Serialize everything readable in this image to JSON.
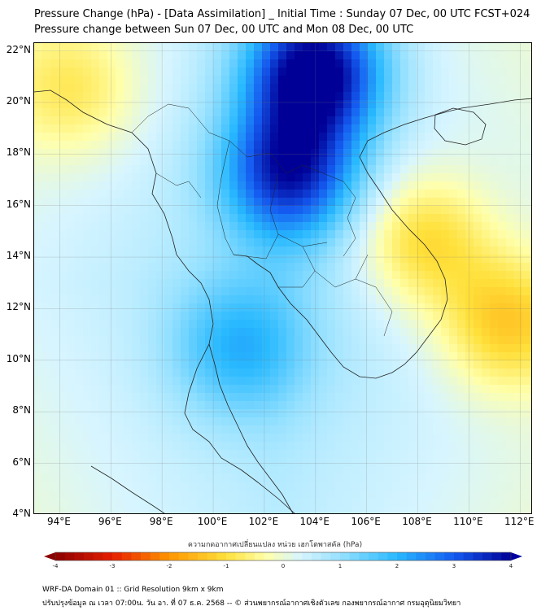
{
  "title_line1": "Pressure Change (hPa) - [Data Assimilation] _ Initial Time : Sunday 07 Dec, 00 UTC FCST+024",
  "title_line2": "Pressure change between Sun 07 Dec, 00 UTC and Mon 08 Dec, 00 UTC",
  "map": {
    "lon_range": [
      93,
      112.5
    ],
    "lat_range": [
      4,
      22.3
    ],
    "lat_labels": [
      "22°N",
      "20°N",
      "18°N",
      "16°N",
      "14°N",
      "12°N",
      "10°N",
      "8°N",
      "6°N",
      "4°N"
    ],
    "lon_labels": [
      "94°E",
      "96°E",
      "98°E",
      "100°E",
      "102°E",
      "104°E",
      "106°E",
      "108°E",
      "110°E",
      "112°E"
    ],
    "grid": true,
    "features": [
      {
        "name": "strong fall",
        "lon": 104,
        "lat": 21.2,
        "value": 3.8
      },
      {
        "name": "northeast thailand fall",
        "lon": 103,
        "lat": 17.3,
        "value": 3.0
      },
      {
        "name": "south china sea rise",
        "lon": 111.5,
        "lat": 11.5,
        "value": -1.6
      },
      {
        "name": "vietnam coast rise",
        "lon": 108.2,
        "lat": 14.6,
        "value": -1.5
      },
      {
        "name": "northwest rise",
        "lon": 94.5,
        "lat": 20.5,
        "value": -1.0
      },
      {
        "name": "gulf of thailand fall",
        "lon": 101,
        "lat": 10.5,
        "value": 1.4
      }
    ]
  },
  "colorbar": {
    "label": "ความกดอากาศเปลี่ยนแปลง หน่วย เฮกโตพาสคัล (hPa)",
    "range": [
      -4,
      4
    ],
    "ticks": [
      "-4",
      "-3",
      "-2",
      "-1",
      "0",
      "1",
      "2",
      "3",
      "4"
    ],
    "colors": {
      "negative_max": "#8b0000",
      "negative_mid": "#ff7f00",
      "zero_low": "#ffff99",
      "positive_low": "#c6f0ff",
      "positive_mid": "#1eb4ff",
      "positive_max": "#0000a0"
    }
  },
  "footer": {
    "line1": "WRF-DA Domain 01 :: Grid Resolution 9km x 9km",
    "line2": "ปรับปรุงข้อมูล ณ เวลา 07:00น. วัน อา. ที่ 07 ธ.ค. 2568 -- © ส่วนพยากรณ์อากาศเชิงตัวเลข กองพยากรณ์อากาศ กรมอุตุนิยมวิทยา"
  }
}
